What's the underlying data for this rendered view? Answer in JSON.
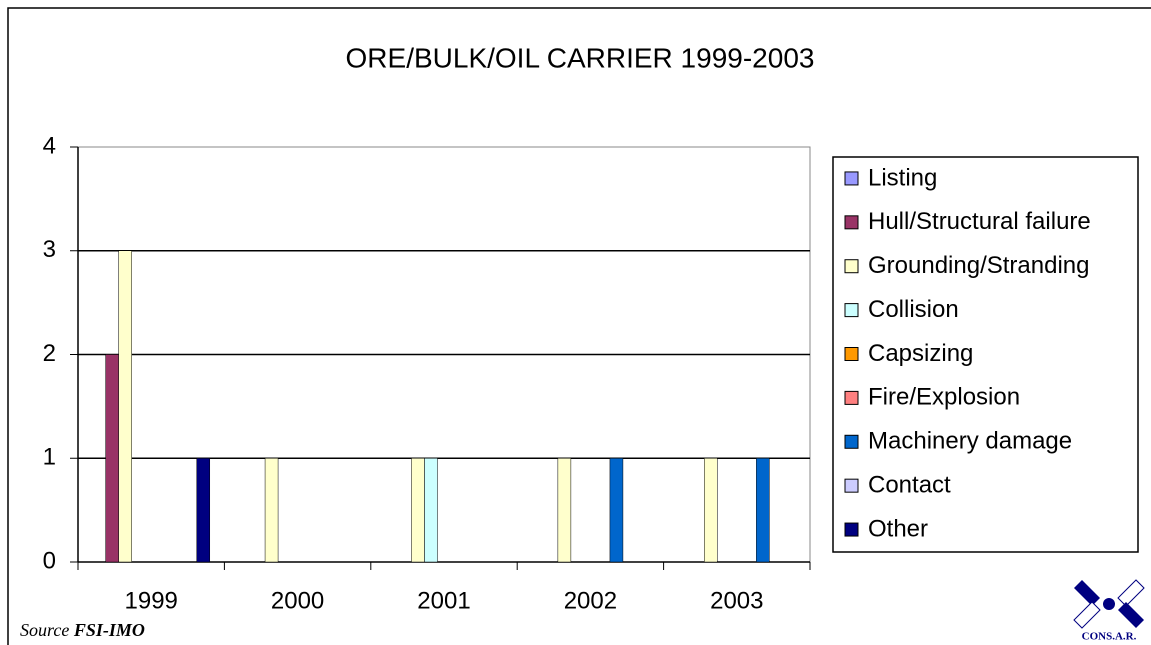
{
  "chart_data": {
    "type": "bar",
    "title": "ORE/BULK/OIL CARRIER 1999-2003",
    "categories": [
      "1999",
      "2000",
      "2001",
      "2002",
      "2003"
    ],
    "series": [
      {
        "name": "Listing",
        "color": "#9999ff",
        "values": [
          0,
          0,
          0,
          0,
          0
        ]
      },
      {
        "name": "Hull/Structural failure",
        "color": "#993366",
        "values": [
          2,
          0,
          0,
          0,
          0
        ]
      },
      {
        "name": "Grounding/Stranding",
        "color": "#ffffcc",
        "values": [
          3,
          1,
          1,
          1,
          1
        ]
      },
      {
        "name": "Collision",
        "color": "#ccffff",
        "values": [
          0,
          0,
          1,
          0,
          0
        ]
      },
      {
        "name": "Capsizing",
        "color": "#ff9900",
        "values": [
          0,
          0,
          0,
          0,
          0
        ]
      },
      {
        "name": "Fire/Explosion",
        "color": "#ff8080",
        "values": [
          0,
          0,
          0,
          0,
          0
        ]
      },
      {
        "name": "Machinery damage",
        "color": "#0066cc",
        "values": [
          0,
          0,
          0,
          1,
          1
        ]
      },
      {
        "name": "Contact",
        "color": "#ccccff",
        "values": [
          0,
          0,
          0,
          0,
          0
        ]
      },
      {
        "name": "Other",
        "color": "#000080",
        "values": [
          1,
          0,
          0,
          0,
          0
        ]
      }
    ],
    "ylim": [
      0,
      4
    ],
    "yticks": [
      0,
      1,
      2,
      3,
      4
    ],
    "grid": true,
    "legend": "right",
    "annotations": [
      "Source",
      "FSI-IMO",
      "CONS.A.R."
    ]
  }
}
